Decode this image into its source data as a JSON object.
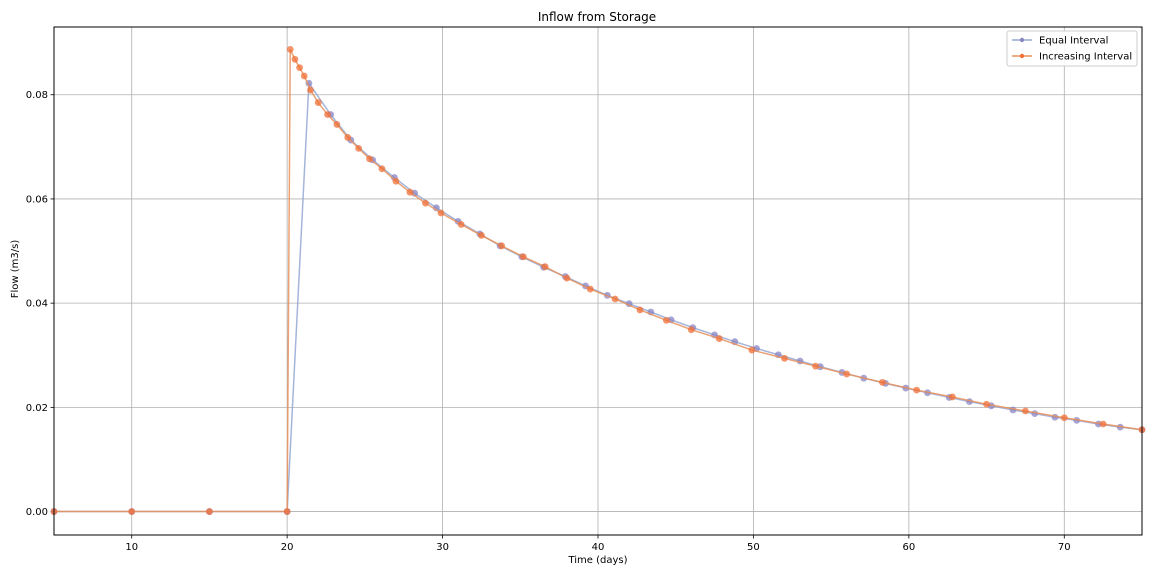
{
  "chart_data": {
    "type": "line",
    "title": "Inflow from Storage",
    "xlabel": "Time (days)",
    "ylabel": "Flow (m3/s)",
    "xlim": [
      5,
      75
    ],
    "ylim": [
      -0.0045,
      0.093
    ],
    "xticks": [
      10,
      20,
      30,
      40,
      50,
      60,
      70
    ],
    "yticks": [
      0.0,
      0.02,
      0.04,
      0.06,
      0.08
    ],
    "ytick_labels": [
      "0.00",
      "0.02",
      "0.04",
      "0.06",
      "0.08"
    ],
    "grid": true,
    "legend_position": "top-right",
    "series": [
      {
        "name": "Equal Interval",
        "line_color": "#95a8d4",
        "marker_color": "#8a86c4",
        "x": [
          5,
          10,
          15,
          20,
          21.4,
          22.8,
          24.1,
          25.5,
          26.9,
          28.2,
          29.6,
          31.0,
          32.4,
          33.7,
          35.1,
          36.5,
          37.9,
          39.2,
          40.6,
          42.0,
          43.4,
          44.7,
          46.1,
          47.5,
          48.8,
          50.2,
          51.6,
          53.0,
          54.3,
          55.7,
          57.1,
          58.5,
          59.8,
          61.2,
          62.6,
          63.9,
          65.3,
          66.7,
          68.1,
          69.4,
          70.8,
          72.2,
          73.6,
          75.0
        ],
        "y": [
          0.0,
          0.0,
          0.0,
          0.0,
          0.0822,
          0.0762,
          0.0713,
          0.0675,
          0.0641,
          0.0611,
          0.0583,
          0.0557,
          0.0533,
          0.051,
          0.0489,
          0.0469,
          0.0451,
          0.0433,
          0.0415,
          0.0399,
          0.0383,
          0.0368,
          0.0353,
          0.0339,
          0.0326,
          0.0313,
          0.0301,
          0.0289,
          0.0278,
          0.0267,
          0.0256,
          0.0246,
          0.0237,
          0.0228,
          0.0219,
          0.0211,
          0.0203,
          0.0195,
          0.0188,
          0.0181,
          0.0175,
          0.0168,
          0.0162,
          0.0157
        ]
      },
      {
        "name": "Increasing Interval",
        "line_color": "#e8915a",
        "marker_color": "#f07038",
        "x": [
          5,
          10,
          15,
          20,
          20.2,
          20.5,
          20.8,
          21.1,
          21.5,
          22.0,
          22.6,
          23.2,
          23.9,
          24.6,
          25.3,
          26.1,
          27.0,
          27.9,
          28.9,
          29.9,
          31.2,
          32.5,
          33.8,
          35.2,
          36.6,
          38.0,
          39.5,
          41.1,
          42.7,
          44.4,
          46.0,
          47.8,
          49.9,
          52.0,
          54.0,
          56.0,
          58.3,
          60.5,
          62.8,
          65.0,
          67.5,
          70.0,
          72.5,
          75.0
        ],
        "y": [
          0.0,
          0.0,
          0.0,
          0.0,
          0.0887,
          0.0868,
          0.0852,
          0.0836,
          0.0809,
          0.0785,
          0.0762,
          0.0743,
          0.0718,
          0.0697,
          0.0677,
          0.0658,
          0.0634,
          0.0613,
          0.0592,
          0.0573,
          0.0551,
          0.053,
          0.051,
          0.0489,
          0.047,
          0.0448,
          0.0427,
          0.0408,
          0.0387,
          0.0367,
          0.0349,
          0.0332,
          0.031,
          0.0294,
          0.0279,
          0.0264,
          0.0248,
          0.0233,
          0.022,
          0.0206,
          0.0193,
          0.018,
          0.0168,
          0.0157
        ]
      }
    ]
  }
}
